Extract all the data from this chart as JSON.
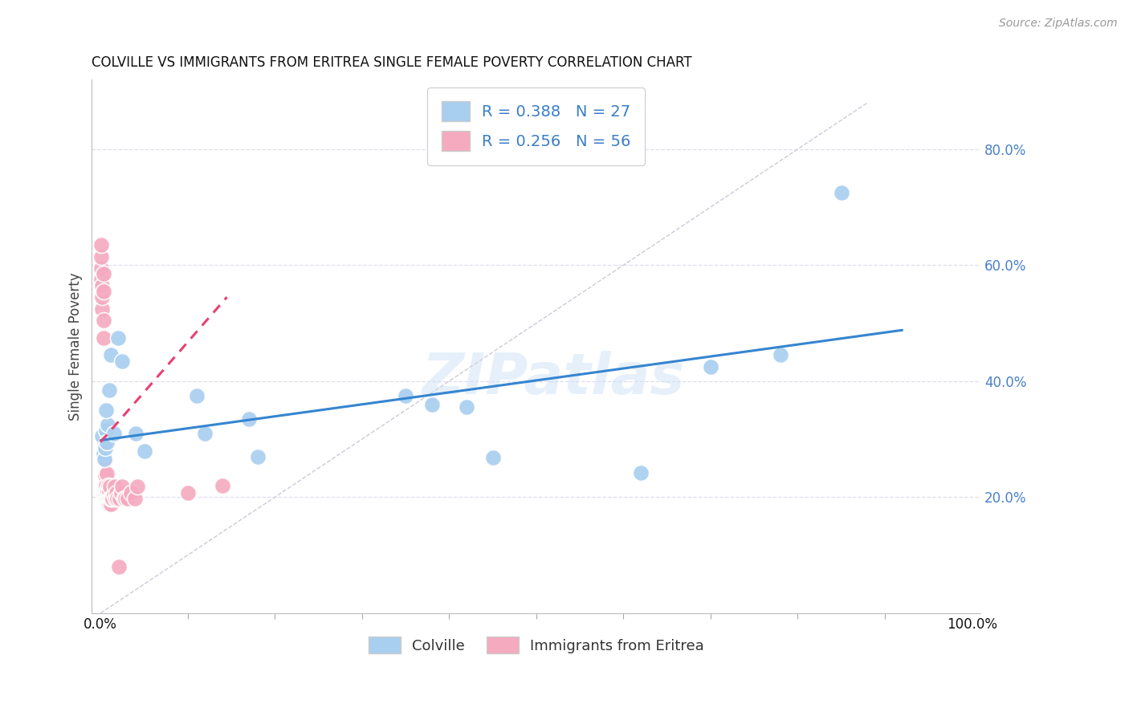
{
  "title": "COLVILLE VS IMMIGRANTS FROM ERITREA SINGLE FEMALE POVERTY CORRELATION CHART",
  "source": "Source: ZipAtlas.com",
  "ylabel": "Single Female Poverty",
  "x_tick_labels_ends": [
    "0.0%",
    "100.0%"
  ],
  "y_tick_labels": [
    "20.0%",
    "40.0%",
    "60.0%",
    "80.0%"
  ],
  "y_ticks": [
    0.2,
    0.4,
    0.6,
    0.8
  ],
  "xlim": [
    -0.01,
    1.01
  ],
  "ylim": [
    0.0,
    0.92
  ],
  "colville_R": 0.388,
  "colville_N": 27,
  "eritrea_R": 0.256,
  "eritrea_N": 56,
  "colville_color": "#A8CEF0",
  "eritrea_color": "#F5AABF",
  "trend_colville_color": "#3585D0",
  "trend_eritrea_color": "#E84070",
  "ref_line_color": "#D0C8D8",
  "background_color": "#FFFFFF",
  "grid_color": "#E0DCF0",
  "watermark": "ZIPatlas",
  "colville_x": [
    0.002,
    0.003,
    0.004,
    0.005,
    0.006,
    0.007,
    0.008,
    0.01,
    0.012,
    0.015,
    0.02,
    0.025,
    0.04,
    0.05,
    0.11,
    0.12,
    0.17,
    0.18,
    0.35,
    0.38,
    0.42,
    0.45,
    0.62,
    0.7,
    0.78,
    0.85,
    0.006
  ],
  "colville_y": [
    0.305,
    0.275,
    0.265,
    0.285,
    0.315,
    0.295,
    0.325,
    0.385,
    0.445,
    0.31,
    0.475,
    0.435,
    0.31,
    0.28,
    0.375,
    0.31,
    0.335,
    0.27,
    0.375,
    0.36,
    0.355,
    0.268,
    0.242,
    0.425,
    0.445,
    0.725,
    0.35
  ],
  "eritrea_x": [
    0.001,
    0.001,
    0.001,
    0.001,
    0.002,
    0.002,
    0.002,
    0.003,
    0.003,
    0.003,
    0.003,
    0.004,
    0.004,
    0.004,
    0.005,
    0.005,
    0.005,
    0.005,
    0.005,
    0.005,
    0.006,
    0.006,
    0.006,
    0.007,
    0.007,
    0.007,
    0.008,
    0.008,
    0.009,
    0.009,
    0.01,
    0.01,
    0.01,
    0.011,
    0.011,
    0.012,
    0.012,
    0.013,
    0.014,
    0.015,
    0.016,
    0.017,
    0.018,
    0.019,
    0.021,
    0.022,
    0.024,
    0.025,
    0.027,
    0.028,
    0.031,
    0.035,
    0.039,
    0.042,
    0.1,
    0.14
  ],
  "eritrea_y": [
    0.575,
    0.595,
    0.615,
    0.635,
    0.525,
    0.545,
    0.565,
    0.475,
    0.505,
    0.555,
    0.585,
    0.265,
    0.278,
    0.295,
    0.2,
    0.212,
    0.222,
    0.238,
    0.265,
    0.282,
    0.198,
    0.208,
    0.22,
    0.198,
    0.21,
    0.24,
    0.198,
    0.21,
    0.198,
    0.22,
    0.188,
    0.198,
    0.21,
    0.198,
    0.218,
    0.188,
    0.198,
    0.198,
    0.198,
    0.205,
    0.218,
    0.198,
    0.208,
    0.198,
    0.08,
    0.198,
    0.208,
    0.218,
    0.198,
    0.198,
    0.198,
    0.208,
    0.198,
    0.218,
    0.208,
    0.22
  ],
  "colville_trend_x": [
    0.0,
    0.92
  ],
  "colville_trend_y": [
    0.298,
    0.488
  ],
  "eritrea_trend_x": [
    0.0,
    0.145
  ],
  "eritrea_trend_y": [
    0.295,
    0.545
  ],
  "ref_line_x": [
    0.0,
    0.88
  ],
  "ref_line_y": [
    0.0,
    0.88
  ],
  "x_minor_ticks": [
    0.1,
    0.2,
    0.3,
    0.4,
    0.5,
    0.6,
    0.7,
    0.8,
    0.9
  ]
}
